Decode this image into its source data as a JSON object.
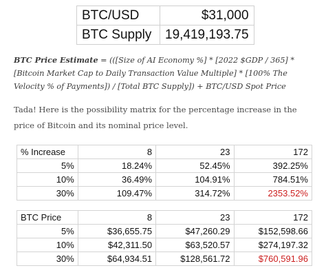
{
  "summary": {
    "rows": [
      {
        "label": "BTC/USD",
        "value": "$31,000"
      },
      {
        "label": "BTC Supply",
        "value": "19,419,193.75"
      }
    ]
  },
  "formula": {
    "label": "BTC Price Estimate",
    "text": " = (([Size of AI Economy %] * [2022 $GDP / 365] * [Bitcoin Market Cap to Daily Transaction Value Multiple] * [100% The Velocity % of Payments]) / [Total BTC Supply]) + BTC/USD Spot Price"
  },
  "intro": "Tada! Here is the possibility matrix for the percentage increase in the price of Bitcoin and its nominal price level.",
  "increase_table": {
    "header": [
      "% Increase",
      "8",
      "23",
      "172"
    ],
    "rows": [
      [
        "5%",
        "18.24%",
        "52.45%",
        "392.25%"
      ],
      [
        "10%",
        "36.49%",
        "104.91%",
        "784.51%"
      ],
      [
        "30%",
        "109.47%",
        "314.72%",
        "2353.52%"
      ]
    ]
  },
  "price_table": {
    "header": [
      "BTC Price",
      "8",
      "23",
      "172"
    ],
    "rows": [
      [
        "5%",
        "$36,655.75",
        "$47,260.29",
        "$152,598.66"
      ],
      [
        "10%",
        "$42,311.50",
        "$63,520.57",
        "$274,197.32"
      ],
      [
        "30%",
        "$64,934.51",
        "$128,561.72",
        "$760,591.96"
      ]
    ]
  },
  "colors": {
    "highlight": "#cc1f1f",
    "border": "#d4d4d4"
  }
}
